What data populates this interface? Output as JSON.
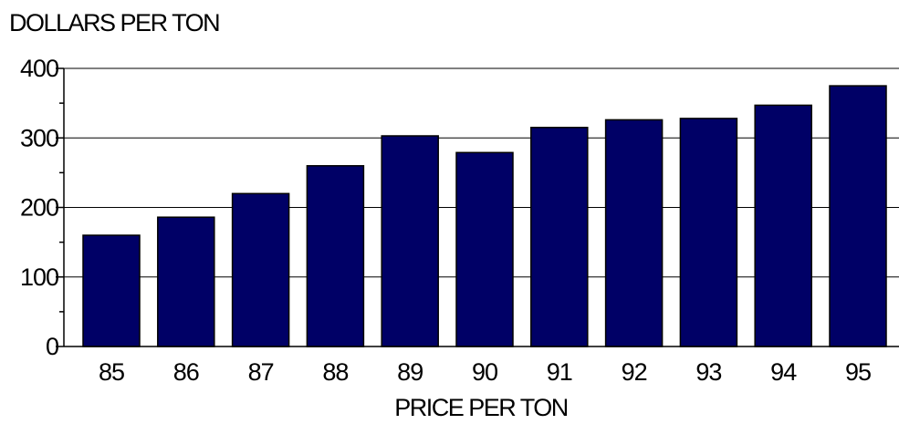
{
  "chart_data": {
    "type": "bar",
    "title": "",
    "ylabel": "DOLLARS PER TON",
    "xlabel": "PRICE PER TON",
    "categories": [
      "85",
      "86",
      "87",
      "88",
      "89",
      "90",
      "91",
      "92",
      "93",
      "94",
      "95"
    ],
    "values": [
      160,
      186,
      220,
      260,
      303,
      279,
      315,
      326,
      328,
      347,
      375
    ],
    "ylim": [
      0,
      400
    ],
    "yticks": [
      0,
      100,
      200,
      300,
      400
    ],
    "grid": true,
    "legend": "none",
    "bar_color": "#000066"
  }
}
